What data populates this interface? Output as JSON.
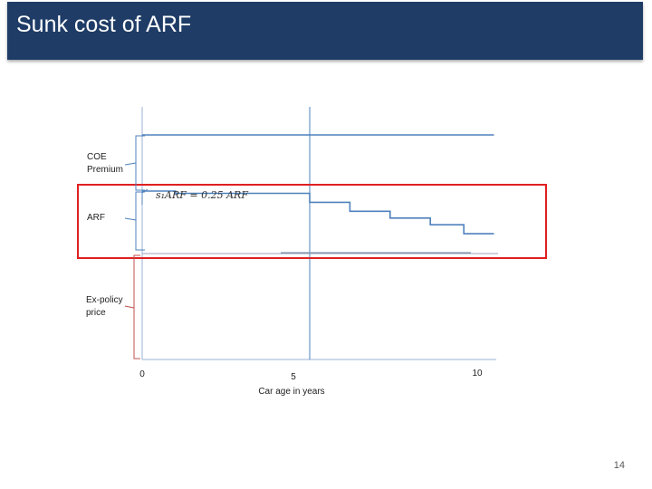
{
  "slide": {
    "title": "Sunk cost of ARF",
    "page_number": "14"
  },
  "labels": {
    "coe": "COE\nPremium",
    "arf": "ARF",
    "expolicy": "Ex-policy\nprice",
    "formula": "s₁ARF = 0.25 ARF"
  },
  "chart_data": {
    "type": "line",
    "title": "",
    "xlabel": "Car age in years",
    "ylabel": "",
    "x_ticks": [
      0,
      5,
      10
    ],
    "xlim": [
      0,
      10.5
    ],
    "series": [
      {
        "role": "COE Premium",
        "x": [
          0,
          10.5
        ],
        "y": [
          1,
          1
        ]
      },
      {
        "role": "ARF",
        "x": [
          0,
          1,
          1,
          5,
          5,
          6.2,
          6.2,
          7.4,
          7.4,
          8.6,
          8.6,
          9.6,
          9.6,
          10.5
        ],
        "y": [
          0.75,
          0.75,
          0.74,
          0.74,
          0.7,
          0.7,
          0.66,
          0.66,
          0.63,
          0.63,
          0.6,
          0.6,
          0.56,
          0.56
        ]
      }
    ],
    "reference_x": [
      5
    ],
    "highlight": {
      "from_y": 0.44,
      "to_y": 0.78
    },
    "colors": {
      "title_bar": "#1e3c66",
      "line": "#4f81bd",
      "highlight_box": "#e02020",
      "brace": "#c0504d"
    }
  }
}
